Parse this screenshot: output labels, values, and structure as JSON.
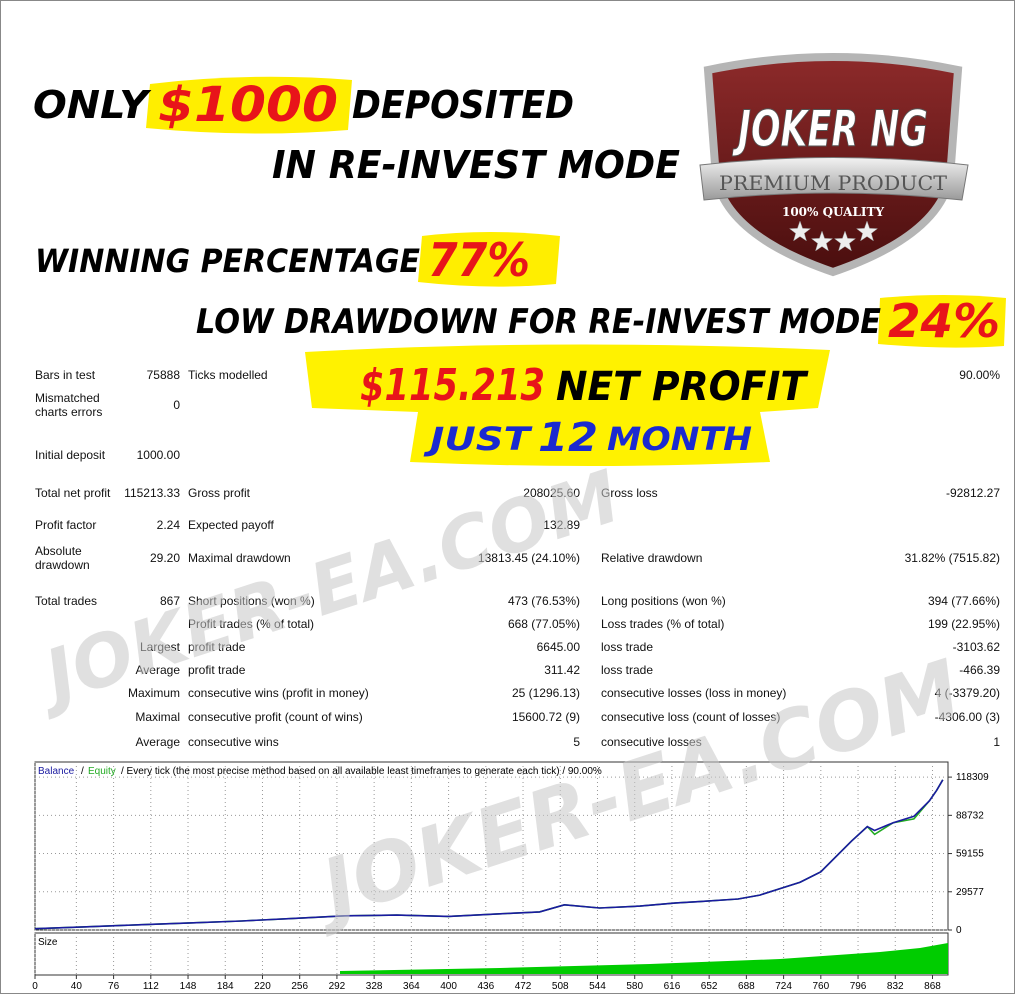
{
  "headlines": {
    "line1": [
      "ONLY",
      "$1000",
      "DEPOSITED"
    ],
    "line2": "IN RE-INVEST MODE",
    "line3": [
      "WINNING PERCENTAGE",
      "77%"
    ],
    "line4": [
      "LOW DRAWDOWN FOR RE-INVEST MODE",
      "24%"
    ]
  },
  "badge": {
    "title": "JOKER NG",
    "ribbon": "PREMIUM PRODUCT",
    "quality": "100% QUALITY"
  },
  "banner": {
    "line1": [
      "$115.213",
      "NET PROFIT"
    ],
    "line2": [
      "JUST",
      "12",
      "MONTH"
    ]
  },
  "watermark": "JOKER-EA.COM",
  "report": {
    "rows": [
      [
        "Bars in test",
        "75888",
        "Ticks modelled",
        null,
        null,
        "90.00%"
      ],
      [
        "Mismatched charts errors",
        "0",
        null,
        null,
        null,
        null
      ],
      [
        "Initial deposit",
        "1000.00",
        null,
        null,
        null,
        null
      ],
      [
        "Total net profit",
        "115213.33",
        "Gross profit",
        "208025.60",
        "Gross loss",
        "-92812.27"
      ],
      [
        "Profit factor",
        "2.24",
        "Expected payoff",
        "132.89",
        null,
        null
      ],
      [
        "Absolute drawdown",
        "29.20",
        "Maximal drawdown",
        "13813.45 (24.10%)",
        "Relative drawdown",
        "31.82% (7515.82)"
      ],
      [
        "Total trades",
        "867",
        "Short positions (won %)",
        "473 (76.53%)",
        "Long positions (won %)",
        "394 (77.66%)"
      ],
      [
        null,
        null,
        "Profit trades (% of total)",
        "668 (77.05%)",
        "Loss trades (% of total)",
        "199 (22.95%)"
      ],
      [
        null,
        "Largest",
        "profit trade",
        "6645.00",
        "loss trade",
        "-3103.62"
      ],
      [
        null,
        "Average",
        "profit trade",
        "311.42",
        "loss trade",
        "-466.39"
      ],
      [
        null,
        "Maximum",
        "consecutive wins (profit in money)",
        "25 (1296.13)",
        "consecutive losses (loss in money)",
        "4 (-3379.20)"
      ],
      [
        null,
        "Maximal",
        "consecutive profit (count of wins)",
        "15600.72 (9)",
        "consecutive loss (count of losses)",
        "-4306.00 (3)"
      ],
      [
        null,
        "Average",
        "consecutive wins",
        "5",
        "consecutive losses",
        "1"
      ]
    ]
  },
  "chart_data": {
    "type": "line",
    "title": "/ Every tick (the most precise method based on all available least timeframes to generate each tick) / 90.00%",
    "separator": "/",
    "size_label": "Size",
    "x": [
      0,
      50,
      100,
      150,
      200,
      250,
      300,
      350,
      400,
      450,
      488,
      512,
      546,
      585,
      620,
      643,
      680,
      701,
      740,
      760,
      775,
      790,
      805,
      812,
      830,
      850,
      865,
      872,
      878
    ],
    "series": [
      {
        "name": "Equity",
        "color": "#22aa22",
        "values": [
          1000,
          2500,
          4000,
          5500,
          7000,
          9000,
          11000,
          11500,
          10500,
          12500,
          14000,
          19500,
          17000,
          18500,
          21000,
          22000,
          24000,
          27000,
          37000,
          45000,
          57000,
          69000,
          80000,
          74000,
          83000,
          86000,
          100000,
          108000,
          116213
        ]
      },
      {
        "name": "Balance",
        "color": "#1a1aa0",
        "values": [
          1000,
          2500,
          4000,
          5500,
          7000,
          9000,
          11000,
          11500,
          10500,
          12500,
          14000,
          19500,
          17000,
          18500,
          21000,
          22000,
          24000,
          27000,
          37000,
          45000,
          57000,
          69000,
          80000,
          77000,
          83000,
          88000,
          100000,
          108000,
          116213
        ]
      }
    ],
    "xlim": [
      0,
      883
    ],
    "xticks": [
      0,
      40,
      76,
      112,
      148,
      184,
      220,
      256,
      292,
      328,
      364,
      400,
      436,
      472,
      508,
      544,
      580,
      616,
      652,
      688,
      724,
      760,
      796,
      832,
      868
    ],
    "ylim": [
      0,
      130000
    ],
    "yticks": [
      0,
      29577,
      59155,
      88732,
      118309
    ],
    "grid": true
  }
}
